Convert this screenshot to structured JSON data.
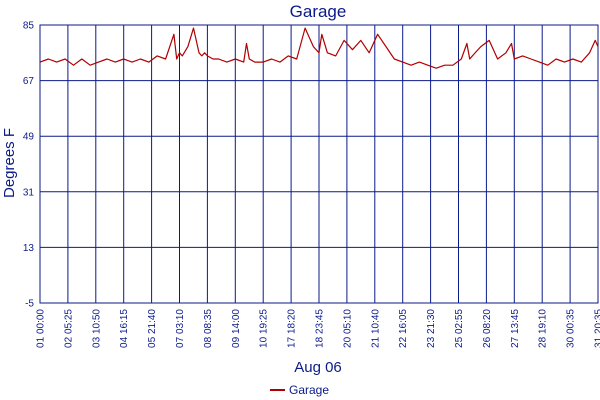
{
  "chart_data": {
    "type": "line",
    "title": "Garage",
    "xlabel": "Aug 06",
    "ylabel": "Degrees F",
    "ylim": [
      -5,
      85
    ],
    "y_ticks": [
      "85",
      "67",
      "49",
      "31",
      "13",
      "-5"
    ],
    "x_ticks": [
      "01 00:00",
      "02 05:25",
      "03 10:50",
      "04 16:15",
      "05 21:40",
      "07 03:10",
      "08 08:35",
      "09 14:00",
      "10 19:25",
      "17 18:20",
      "18 23:45",
      "20 05:10",
      "21 10:40",
      "22 16:05",
      "23 21:30",
      "25 02:55",
      "26 08:20",
      "27 13:45",
      "28 19:10",
      "30 00:35",
      "31 20:35"
    ],
    "grid": true,
    "legend_position": "bottom-center",
    "series": [
      {
        "name": "Garage",
        "color": "#b00000",
        "x": [
          0,
          0.3,
          0.6,
          0.9,
          1.2,
          1.5,
          1.8,
          2.1,
          2.4,
          2.7,
          3.0,
          3.3,
          3.6,
          3.9,
          4.2,
          4.5,
          4.8,
          4.9,
          5.0,
          5.1,
          5.3,
          5.5,
          5.7,
          5.8,
          5.9,
          6.0,
          6.2,
          6.4,
          6.7,
          7.0,
          7.3,
          7.4,
          7.5,
          7.7,
          8.0,
          8.3,
          8.6,
          8.9,
          9.2,
          9.5,
          9.8,
          10.0,
          10.1,
          10.3,
          10.6,
          10.9,
          11.2,
          11.5,
          11.8,
          12.1,
          12.4,
          12.7,
          13.0,
          13.3,
          13.6,
          13.9,
          14.2,
          14.5,
          14.8,
          15.1,
          15.3,
          15.4,
          15.5,
          15.8,
          16.1,
          16.4,
          16.7,
          16.9,
          17.0,
          17.3,
          17.6,
          17.9,
          18.2,
          18.5,
          18.8,
          19.1,
          19.4,
          19.7,
          19.9,
          20.0
        ],
        "y": [
          73,
          74,
          73,
          74,
          72,
          74,
          72,
          73,
          74,
          73,
          74,
          73,
          74,
          73,
          75,
          74,
          82,
          74,
          76,
          75,
          78,
          84,
          76,
          75,
          76,
          75,
          74,
          74,
          73,
          74,
          73,
          79,
          74,
          73,
          73,
          74,
          73,
          75,
          74,
          84,
          78,
          76,
          82,
          76,
          75,
          80,
          77,
          80,
          76,
          82,
          78,
          74,
          73,
          72,
          73,
          72,
          71,
          72,
          72,
          74,
          79,
          74,
          75,
          78,
          80,
          74,
          76,
          79,
          74,
          75,
          74,
          73,
          72,
          74,
          73,
          74,
          73,
          76,
          80,
          78
        ]
      }
    ]
  }
}
